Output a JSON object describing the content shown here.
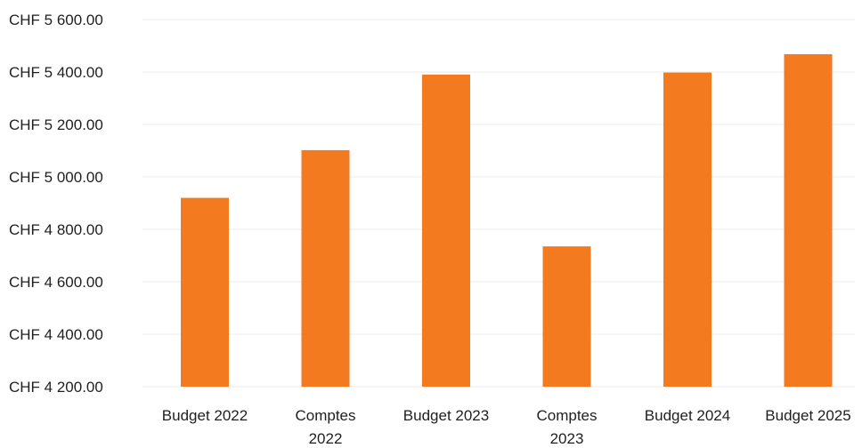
{
  "chart_data": {
    "type": "bar",
    "title": "",
    "xlabel": "",
    "ylabel": "",
    "categories": [
      [
        "Budget 2022"
      ],
      [
        "Comptes",
        "2022"
      ],
      [
        "Budget 2023"
      ],
      [
        "Comptes",
        "2023"
      ],
      [
        "Budget 2024"
      ],
      [
        "Budget 2025"
      ]
    ],
    "values": [
      4920,
      5102,
      5390,
      4735,
      5398,
      5468
    ],
    "ylim": [
      4200,
      5600
    ],
    "yticks": [
      4200,
      4400,
      4600,
      4800,
      5000,
      5200,
      5400,
      5600
    ],
    "ytick_labels": [
      "CHF 4 200.00",
      "CHF 4 400.00",
      "CHF 4 600.00",
      "CHF 4 800.00",
      "CHF 5 000.00",
      "CHF 5 200.00",
      "CHF 5 400.00",
      "CHF 5 600.00"
    ],
    "grid": true,
    "legend": "none",
    "bar_color": "#F47A20"
  }
}
